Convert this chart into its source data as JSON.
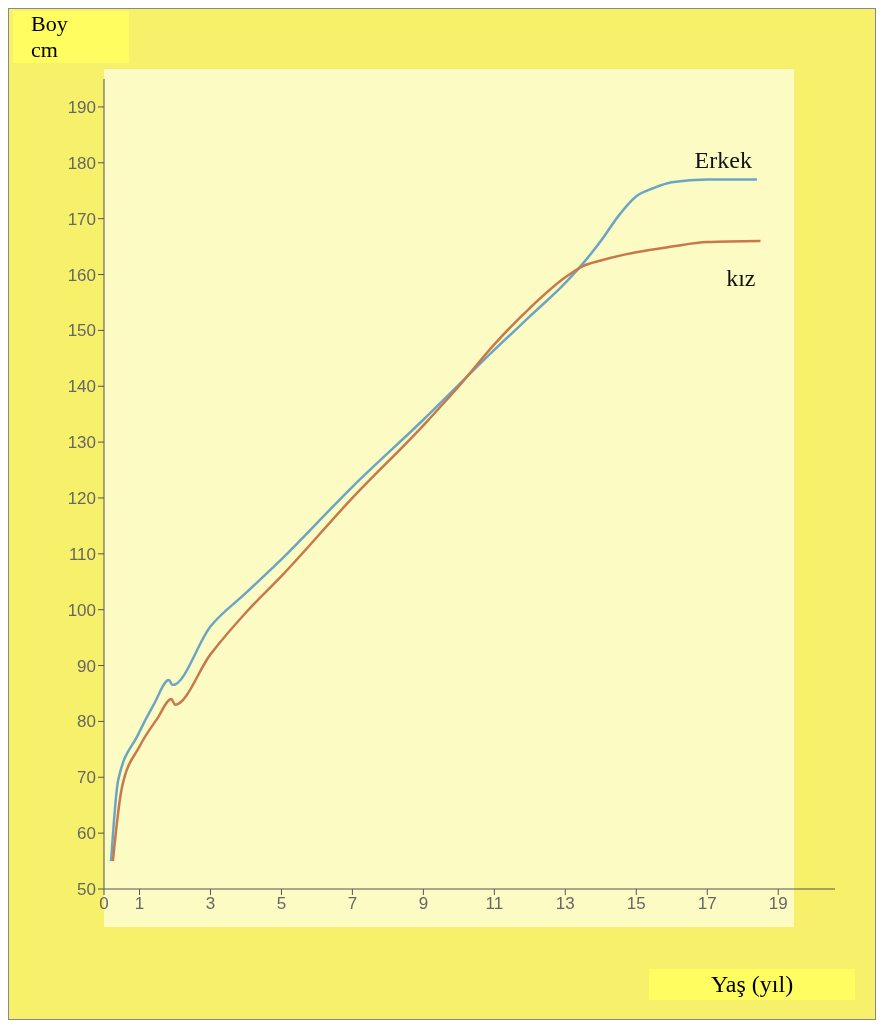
{
  "chart_data": {
    "type": "line",
    "xlabel": "Yaş (yıl)",
    "ylabel": "Boy cm",
    "xlim": [
      0,
      20.6
    ],
    "xticks": [
      0,
      1,
      3,
      5,
      7,
      9,
      11,
      13,
      15,
      17,
      19
    ],
    "ylim": [
      50,
      195
    ],
    "yticks": [
      50,
      60,
      70,
      80,
      90,
      100,
      110,
      120,
      130,
      140,
      150,
      160,
      170,
      180,
      190
    ],
    "grid": false,
    "marker": "none",
    "line_style": "solid",
    "series": [
      {
        "name": "Erkek",
        "color": "#6aa6c4",
        "x": [
          0.2,
          0.4,
          0.95,
          1.4,
          1.83,
          1.93,
          3,
          4,
          5,
          7,
          9,
          11,
          12,
          13,
          13.5,
          14,
          14.5,
          15,
          15.5,
          16,
          17,
          18.4
        ],
        "values": [
          55,
          69.5,
          77.5,
          83,
          87.4,
          86.5,
          97,
          103,
          109,
          122,
          134,
          146.5,
          152.5,
          158.5,
          162,
          166,
          170.5,
          174,
          175.5,
          176.5,
          177,
          177
        ]
      },
      {
        "name": "kız",
        "color": "#c8784a",
        "x": [
          0.25,
          0.5,
          1,
          1.5,
          1.9,
          2,
          3,
          4,
          5,
          7,
          9,
          10,
          11,
          12,
          13,
          13.5,
          14,
          15,
          16,
          17,
          18.5
        ],
        "values": [
          55,
          68,
          75.5,
          80.5,
          84,
          83,
          92,
          99.5,
          106,
          120,
          133,
          140,
          147.5,
          154,
          159.5,
          161.5,
          162.5,
          164,
          165,
          165.8,
          166
        ]
      }
    ]
  }
}
